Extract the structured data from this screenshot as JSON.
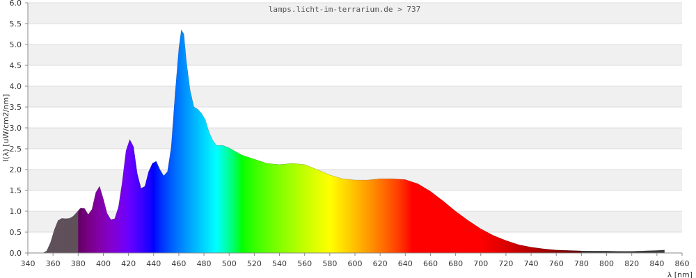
{
  "chart_data": {
    "type": "area",
    "title": "lamps.licht-im-terrarium.de > 737",
    "xlabel": "λ [nm]",
    "ylabel": "I(λ) [uW/cm2/nm]",
    "xlim": [
      340,
      860
    ],
    "ylim": [
      0,
      6
    ],
    "xticks": [
      "340",
      "360",
      "380",
      "400",
      "420",
      "440",
      "460",
      "480",
      "500",
      "520",
      "540",
      "560",
      "580",
      "600",
      "620",
      "640",
      "660",
      "680",
      "700",
      "720",
      "740",
      "760",
      "780",
      "800",
      "820",
      "840",
      "860"
    ],
    "yticks": [
      "0.0",
      "0.5",
      "1.0",
      "1.5",
      "2.0",
      "2.5",
      "3.0",
      "3.5",
      "4.0",
      "4.5",
      "5.0",
      "5.5",
      "6.0"
    ],
    "grid": true,
    "band_colors": [
      "#ffffff",
      "#f0f0f0"
    ],
    "series": [
      {
        "x": [
          352,
          355,
          358,
          361,
          364,
          367,
          370,
          373,
          376,
          379,
          382,
          385,
          388,
          391,
          394,
          397,
          400,
          403,
          406,
          409,
          412,
          415,
          418,
          421,
          424,
          427,
          430,
          433,
          436,
          439,
          442,
          445,
          448,
          451,
          454,
          457,
          460,
          462,
          464,
          466,
          469,
          472,
          475,
          478,
          481,
          484,
          487,
          490,
          495,
          500,
          510,
          520,
          530,
          540,
          550,
          560,
          570,
          580,
          590,
          600,
          610,
          620,
          630,
          640,
          650,
          660,
          670,
          680,
          690,
          700,
          710,
          720,
          730,
          740,
          750,
          760,
          770,
          780,
          790,
          800,
          810,
          820,
          830,
          840,
          846
        ],
        "y": [
          0.0,
          0.05,
          0.25,
          0.55,
          0.78,
          0.83,
          0.82,
          0.83,
          0.88,
          0.98,
          1.08,
          1.07,
          0.92,
          1.05,
          1.45,
          1.6,
          1.3,
          0.95,
          0.8,
          0.82,
          1.1,
          1.7,
          2.45,
          2.72,
          2.55,
          1.9,
          1.55,
          1.6,
          1.95,
          2.15,
          2.2,
          2.0,
          1.85,
          1.95,
          2.55,
          3.8,
          4.9,
          5.35,
          5.25,
          4.6,
          3.9,
          3.5,
          3.45,
          3.35,
          3.2,
          2.9,
          2.7,
          2.58,
          2.58,
          2.52,
          2.35,
          2.25,
          2.15,
          2.12,
          2.15,
          2.12,
          2.0,
          1.87,
          1.78,
          1.75,
          1.75,
          1.78,
          1.78,
          1.76,
          1.66,
          1.48,
          1.25,
          1.0,
          0.78,
          0.58,
          0.42,
          0.3,
          0.2,
          0.14,
          0.1,
          0.07,
          0.06,
          0.05,
          0.045,
          0.045,
          0.04,
          0.04,
          0.05,
          0.06,
          0.07
        ]
      }
    ]
  }
}
